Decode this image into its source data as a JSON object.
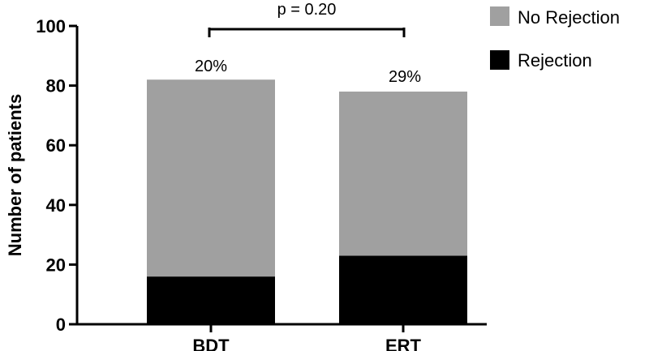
{
  "chart_data": {
    "type": "bar",
    "stacked": true,
    "categories": [
      "BDT",
      "ERT"
    ],
    "series": [
      {
        "name": "Rejection",
        "values": [
          16,
          23
        ],
        "color": "#000000"
      },
      {
        "name": "No Rejection",
        "values": [
          66,
          55
        ],
        "color": "#a0a0a0"
      }
    ],
    "bar_labels": [
      "20%",
      "29%"
    ],
    "ylabel": "Number of patients",
    "xlabel": "",
    "ylim": [
      0,
      100
    ],
    "yticks": [
      "0",
      "20",
      "40",
      "60",
      "80",
      "100"
    ],
    "annotation": "p = 0.20",
    "legend": {
      "placement": "top-right",
      "entries": [
        "No Rejection",
        "Rejection"
      ]
    },
    "grid": false
  }
}
